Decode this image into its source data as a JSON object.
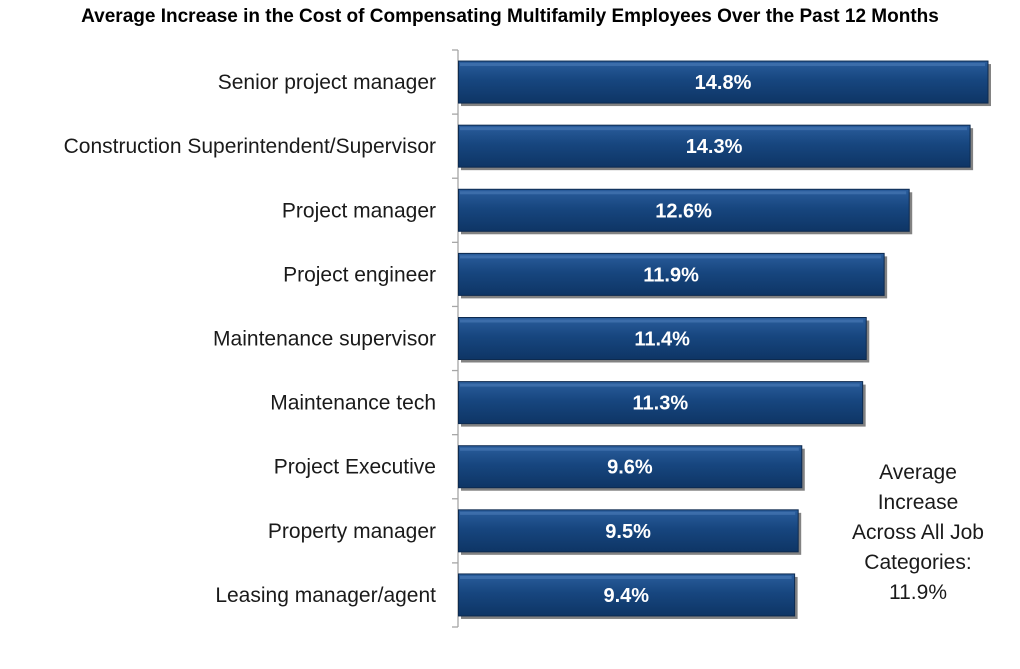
{
  "chart_data": {
    "type": "bar",
    "orientation": "horizontal",
    "title": "Average Increase in the Cost of Compensating Multifamily Employees Over the Past 12 Months",
    "categories": [
      "Senior project manager",
      "Construction Superintendent/Supervisor",
      "Project manager",
      "Project engineer",
      "Maintenance supervisor",
      "Maintenance tech",
      "Project Executive",
      "Property manager",
      "Leasing manager/agent"
    ],
    "values": [
      14.8,
      14.3,
      12.6,
      11.9,
      11.4,
      11.3,
      9.6,
      9.5,
      9.4
    ],
    "value_labels": [
      "14.8%",
      "14.3%",
      "12.6%",
      "11.9%",
      "11.4%",
      "11.3%",
      "9.6%",
      "9.5%",
      "9.4%"
    ],
    "xlim": [
      0,
      14.8
    ],
    "xlabel": "",
    "ylabel": "",
    "grid": false,
    "bar_color": "#17467f",
    "bar_edge_color": "#0d2a4f",
    "annotation": "Average Increase Across All Job Categories: 11.9%",
    "annotation_lines": [
      "Average",
      "Increase",
      "Across All Job",
      "Categories:",
      "11.9%"
    ]
  }
}
